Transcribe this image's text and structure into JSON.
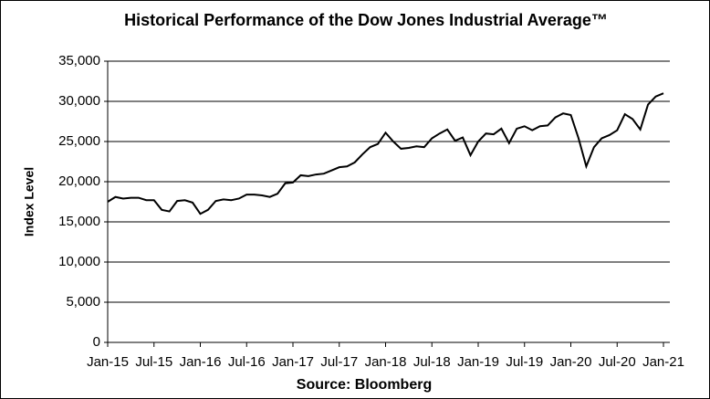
{
  "chart_data": {
    "type": "line",
    "title": "Historical Performance of the Dow Jones Industrial Average™",
    "x_label": "Source: Bloomberg",
    "y_label": "Index Level",
    "categories": [
      "Jan-15",
      null,
      null,
      null,
      null,
      null,
      "Jul-15",
      null,
      null,
      null,
      null,
      null,
      "Jan-16",
      null,
      null,
      null,
      null,
      null,
      "Jul-16",
      null,
      null,
      null,
      null,
      null,
      "Jan-17",
      null,
      null,
      null,
      null,
      null,
      "Jul-17",
      null,
      null,
      null,
      null,
      null,
      "Jan-18",
      null,
      null,
      null,
      null,
      null,
      "Jul-18",
      null,
      null,
      null,
      null,
      null,
      "Jan-19",
      null,
      null,
      null,
      null,
      null,
      "Jul-19",
      null,
      null,
      null,
      null,
      null,
      "Jan-20",
      null,
      null,
      null,
      null,
      null,
      "Jul-20",
      null,
      null,
      null,
      null,
      null,
      "Jan-21"
    ],
    "series": [
      {
        "color": "#000000",
        "values": [
          17500,
          18100,
          17900,
          18000,
          18000,
          17700,
          17700,
          16500,
          16300,
          17600,
          17700,
          17400,
          16000,
          16500,
          17600,
          17800,
          17700,
          17900,
          18400,
          18400,
          18300,
          18100,
          18500,
          19800,
          19900,
          20800,
          20700,
          20900,
          21000,
          21400,
          21800,
          21900,
          22400,
          23400,
          24300,
          24700,
          26100,
          25000,
          24100,
          24200,
          24400,
          24300,
          25400,
          26000,
          26500,
          25100,
          25500,
          23300,
          25000,
          26000,
          25900,
          26600,
          24800,
          26600,
          26900,
          26400,
          26900,
          27000,
          28000,
          28500,
          28300,
          25400,
          21900,
          24300,
          25400,
          25800,
          26400,
          28400,
          27800,
          26500,
          29600,
          30600,
          31000
        ]
      }
    ],
    "ylim": [
      0,
      35000
    ],
    "yticks": [
      0,
      {
        "value": 5000,
        "label": "5,000"
      },
      {
        "value": 10000,
        "label": "10,000"
      },
      {
        "value": 15000,
        "label": "15,000"
      },
      {
        "value": 20000,
        "label": "20,000"
      },
      {
        "value": 25000,
        "label": "25,000"
      },
      {
        "value": 30000,
        "label": "30,000"
      },
      {
        "value": 35000,
        "label": "35,000"
      }
    ],
    "grid": true
  }
}
